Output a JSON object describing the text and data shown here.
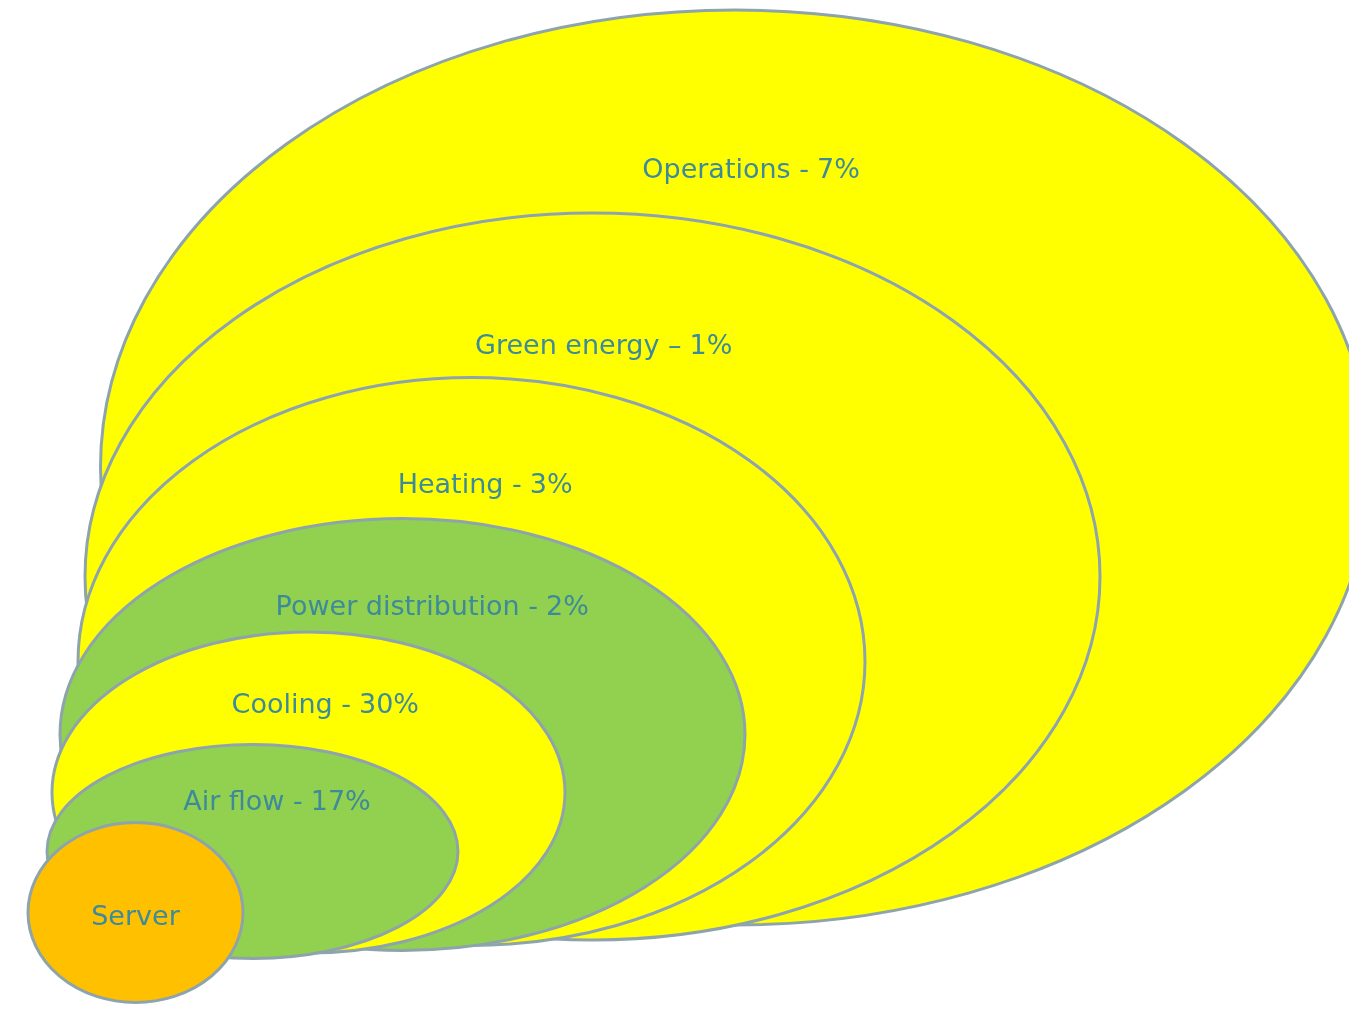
{
  "chart_data": {
    "type": "other",
    "categories": [
      "Server",
      "Air flow -",
      "Cooling -",
      "Power distribution -",
      "Heating -",
      "Green energy –",
      "Operations -"
    ],
    "values": [
      null,
      17,
      30,
      2,
      3,
      1,
      7
    ],
    "value_labels": [
      null,
      "17%",
      "30%",
      "2%",
      "3%",
      "1%",
      "7%"
    ],
    "colors": [
      "#ffc000",
      "#92d050",
      "#ffff00",
      "#92d050",
      "#ffff00",
      "#ffff00",
      "#ffff00"
    ],
    "data_labels": true
  }
}
